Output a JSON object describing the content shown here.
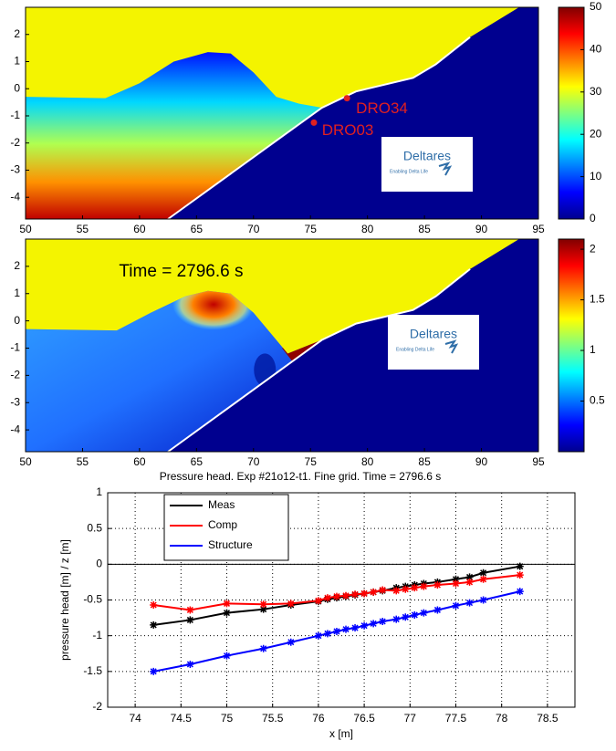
{
  "chart_data": [
    {
      "type": "heatmap",
      "xlim": [
        50,
        95
      ],
      "xticks": [
        50,
        55,
        60,
        65,
        70,
        75,
        80,
        85,
        90,
        95
      ],
      "ylim": [
        -4.8,
        3
      ],
      "yticks": [
        2,
        1,
        0,
        -1,
        -2,
        -3,
        -4
      ],
      "colorbar": {
        "clim": [
          0,
          50
        ],
        "ticks": [
          0,
          10,
          20,
          30,
          40,
          50
        ]
      },
      "annotations": [
        "DRO34",
        "DRO03"
      ],
      "logo": {
        "name": "Deltares",
        "tagline": "Enabling Delta Life"
      }
    },
    {
      "type": "heatmap",
      "xlim": [
        50,
        95
      ],
      "xticks": [
        50,
        55,
        60,
        65,
        70,
        75,
        80,
        85,
        90,
        95
      ],
      "ylim": [
        -4.8,
        3
      ],
      "yticks": [
        2,
        1,
        0,
        -1,
        -2,
        -3,
        -4
      ],
      "colorbar": {
        "clim": [
          0,
          2.1
        ],
        "ticks": [
          0.5,
          1,
          1.5,
          2
        ]
      },
      "annotations": [
        "Time = 2796.6 s"
      ],
      "logo": {
        "name": "Deltares",
        "tagline": "Enabling Delta Life"
      },
      "title": "Pressure head. Exp #21o12-t1. Fine grid. Time = 2796.6 s"
    },
    {
      "type": "line",
      "xlabel": "x [m]",
      "ylabel": "pressure head [m] / z [m]",
      "xlim": [
        73.7,
        78.8
      ],
      "xticks": [
        74,
        74.5,
        75,
        75.5,
        76,
        76.5,
        77,
        77.5,
        78,
        78.5
      ],
      "ylim": [
        -2,
        1
      ],
      "yticks": [
        1,
        0.5,
        0,
        -0.5,
        -1,
        -1.5,
        -2
      ],
      "grid": true,
      "legend": "upper left",
      "x": [
        74.2,
        74.6,
        75.0,
        75.4,
        75.7,
        76.0,
        76.1,
        76.2,
        76.3,
        76.4,
        76.5,
        76.6,
        76.7,
        76.85,
        76.95,
        77.05,
        77.15,
        77.3,
        77.5,
        77.65,
        77.8,
        78.2
      ],
      "series": [
        {
          "name": "Meas",
          "color": "#000000",
          "values": [
            -0.85,
            -0.78,
            -0.68,
            -0.63,
            -0.57,
            -0.52,
            -0.49,
            -0.47,
            -0.45,
            -0.43,
            -0.41,
            -0.39,
            -0.37,
            -0.33,
            -0.31,
            -0.29,
            -0.27,
            -0.25,
            -0.21,
            -0.18,
            -0.12,
            -0.03
          ]
        },
        {
          "name": "Comp",
          "color": "#ff0000",
          "values": [
            -0.57,
            -0.64,
            -0.55,
            -0.56,
            -0.55,
            -0.51,
            -0.47,
            -0.45,
            -0.44,
            -0.42,
            -0.41,
            -0.39,
            -0.36,
            -0.37,
            -0.35,
            -0.33,
            -0.31,
            -0.29,
            -0.27,
            -0.25,
            -0.21,
            -0.15
          ]
        },
        {
          "name": "Structure",
          "color": "#0000ff",
          "values": [
            -1.5,
            -1.4,
            -1.28,
            -1.18,
            -1.09,
            -1.0,
            -0.97,
            -0.94,
            -0.91,
            -0.89,
            -0.86,
            -0.83,
            -0.8,
            -0.77,
            -0.74,
            -0.71,
            -0.68,
            -0.64,
            -0.58,
            -0.54,
            -0.5,
            -0.38
          ]
        }
      ]
    }
  ]
}
